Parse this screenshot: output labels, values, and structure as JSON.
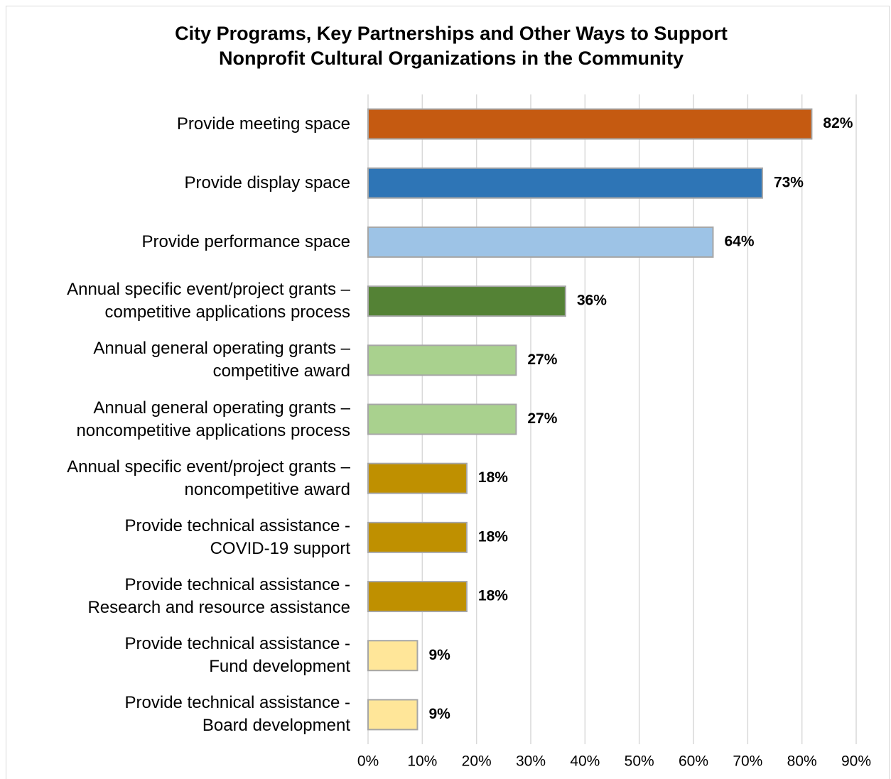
{
  "chart_data": {
    "type": "bar",
    "orientation": "horizontal",
    "title": "City Programs, Key Partnerships and Other Ways to Support\nNonprofit Cultural Organizations in the Community",
    "categories": [
      "Provide meeting space",
      "Provide display space",
      "Provide performance space",
      "Annual specific event/project grants –\ncompetitive applications process",
      "Annual general operating grants –\ncompetitive award",
      "Annual general operating grants –\nnoncompetitive applications process",
      "Annual specific event/project grants –\nnoncompetitive award",
      "Provide technical assistance -\nCOVID-19 support",
      "Provide technical assistance -\nResearch and resource assistance",
      "Provide technical assistance -\nFund development",
      "Provide technical assistance -\nBoard development"
    ],
    "values": [
      81.8,
      72.7,
      63.6,
      36.4,
      27.3,
      27.3,
      18.2,
      18.2,
      18.2,
      9.1,
      9.1
    ],
    "value_labels": [
      "82%",
      "73%",
      "64%",
      "36%",
      "27%",
      "27%",
      "18%",
      "18%",
      "18%",
      "9%",
      "9%"
    ],
    "colors": [
      "#c55a11",
      "#2e75b6",
      "#9dc3e6",
      "#548235",
      "#a9d18e",
      "#a9d18e",
      "#bf9000",
      "#bf9000",
      "#bf9000",
      "#ffe699",
      "#ffe699"
    ],
    "xlim": [
      0,
      90
    ],
    "xticks": [
      {
        "value": 0,
        "label": "0%"
      },
      {
        "value": 10,
        "label": "10%"
      },
      {
        "value": 20,
        "label": "20%"
      },
      {
        "value": 30,
        "label": "30%"
      },
      {
        "value": 40,
        "label": "40%"
      },
      {
        "value": 50,
        "label": "50%"
      },
      {
        "value": 60,
        "label": "60%"
      },
      {
        "value": 70,
        "label": "70%"
      },
      {
        "value": 80,
        "label": "80%"
      },
      {
        "value": 90,
        "label": "90%"
      }
    ],
    "grid": true
  }
}
